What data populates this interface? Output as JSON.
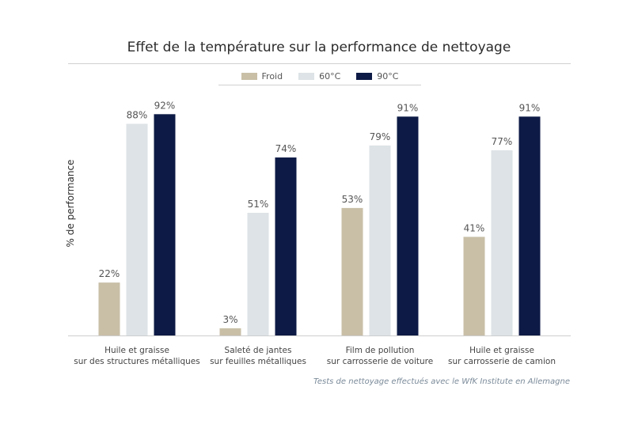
{
  "chart_data": {
    "type": "bar",
    "title": "Effet de la température sur la performance de nettoyage",
    "ylabel": "% de performance",
    "xlabel": "",
    "ylim": [
      0,
      100
    ],
    "grid": false,
    "legend_placement": "top-center",
    "categories": [
      [
        "Huile et graisse",
        "sur des structures métalliques"
      ],
      [
        "Saleté de jantes",
        "sur feuilles métalliques"
      ],
      [
        "Film de pollution",
        "sur carrosserie de voiture"
      ],
      [
        "Huile et graisse",
        "sur carrosserie de camion"
      ]
    ],
    "series": [
      {
        "name": "Froid",
        "color": "#c9bfa7",
        "values": [
          22,
          3,
          53,
          41
        ],
        "labels": [
          "22%",
          "3%",
          "53%",
          "41%"
        ]
      },
      {
        "name": "60°C",
        "color": "#dde3e6",
        "values": [
          88,
          51,
          79,
          77
        ],
        "labels": [
          "88%",
          "51%",
          "79%",
          "77%"
        ]
      },
      {
        "name": "90°C",
        "color": "#0d1a45",
        "values": [
          92,
          74,
          91,
          91
        ],
        "labels": [
          "92%",
          "74%",
          "91%",
          "91%"
        ]
      }
    ],
    "footnote": "Tests de nettoyage effectués avec le WfK Institute en Allemagne"
  }
}
